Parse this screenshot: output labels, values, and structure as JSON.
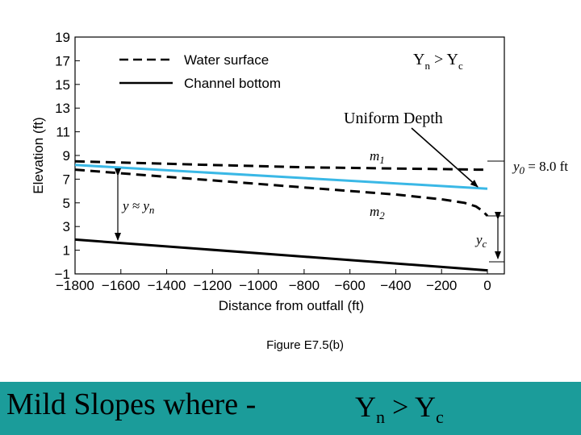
{
  "chart_data": {
    "type": "line",
    "title": "",
    "xlabel": "Distance from outfall (ft)",
    "ylabel": "Elevation (ft)",
    "xlim": [
      -1800,
      0
    ],
    "ylim": [
      -1,
      19
    ],
    "x_ticks": [
      "−1800",
      "−1600",
      "−1400",
      "−1200",
      "−1000",
      "−800",
      "−600",
      "−400",
      "−200",
      "0"
    ],
    "x_tick_values": [
      -1800,
      -1600,
      -1400,
      -1200,
      -1000,
      -800,
      -600,
      -400,
      -200,
      0
    ],
    "y_ticks": [
      "19",
      "17",
      "15",
      "13",
      "11",
      "9",
      "7",
      "5",
      "3",
      "1",
      "−1"
    ],
    "y_tick_values": [
      19,
      17,
      15,
      13,
      11,
      9,
      7,
      5,
      3,
      1,
      -1
    ],
    "legend": {
      "placement": "top-left",
      "items": [
        {
          "label": "Water surface",
          "style": "dashed"
        },
        {
          "label": "Channel bottom",
          "style": "solid"
        }
      ]
    },
    "series": [
      {
        "name": "Water surface",
        "curve": "m1",
        "style": "dashed",
        "x": [
          -1800,
          -1600,
          -1400,
          -1200,
          -1000,
          -800,
          -600,
          -400,
          -200,
          -50,
          0
        ],
        "y": [
          8.5,
          8.4,
          8.3,
          8.2,
          8.1,
          8.0,
          7.95,
          7.9,
          7.85,
          7.8,
          7.8
        ]
      },
      {
        "name": "Water surface",
        "curve": "m2",
        "style": "dashed",
        "x": [
          -1800,
          -1600,
          -1400,
          -1200,
          -1000,
          -800,
          -600,
          -400,
          -200,
          -100,
          -50,
          -20,
          0
        ],
        "y": [
          7.8,
          7.5,
          7.2,
          6.9,
          6.6,
          6.3,
          6.0,
          5.7,
          5.3,
          5.0,
          4.7,
          4.3,
          3.9
        ]
      },
      {
        "name": "Channel bottom",
        "style": "solid",
        "x": [
          -1800,
          0
        ],
        "y": [
          1.9,
          -0.7
        ]
      },
      {
        "name": "",
        "curve": "Uniform Depth",
        "style": "solid",
        "color": "#3ab8e6",
        "x": [
          -1800,
          0
        ],
        "y": [
          8.2,
          6.2
        ]
      }
    ],
    "annotations": [
      {
        "text_parts": [
          "m",
          "1"
        ],
        "x": -420,
        "y": 8.9
      },
      {
        "text_parts": [
          "m",
          "2"
        ],
        "x": -420,
        "y": 4.3
      },
      {
        "text_parts": [
          "y ≈ y",
          "n"
        ],
        "x": -1620,
        "y": 5.4
      },
      {
        "text_parts": [
          "y",
          "c"
        ],
        "x": -80,
        "y": 1.6
      },
      {
        "text_parts": [
          "y",
          "0",
          " = 8.0 ft"
        ]
      }
    ],
    "colors": {
      "uniform_depth_line": "#3ab8e6",
      "banner": "#1b9c9a"
    }
  },
  "overlay": {
    "relation_top": {
      "main1": "Y",
      "sub1": "n",
      "op": " > ",
      "main2": "Y",
      "sub2": "c"
    },
    "uniform_label": "Uniform Depth"
  },
  "caption": "Figure E7.5(b)",
  "banner": {
    "text": "Mild Slopes where -",
    "relation": {
      "main1": "Y",
      "sub1": "n",
      "op": " > ",
      "main2": "Y",
      "sub2": "c"
    }
  }
}
